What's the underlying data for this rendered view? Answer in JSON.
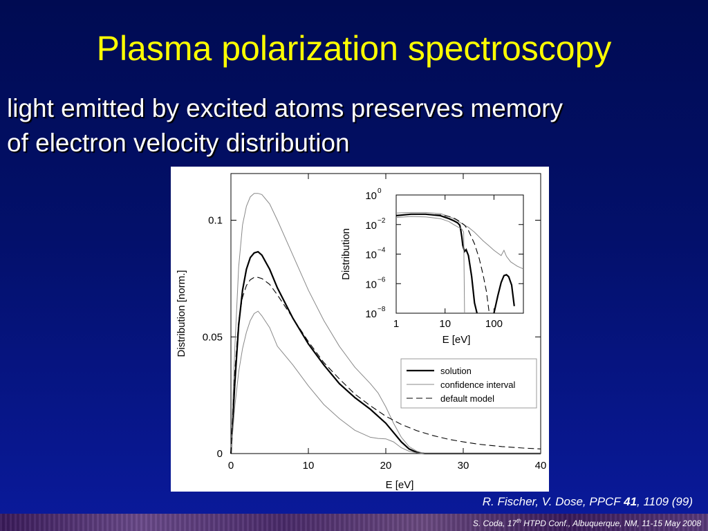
{
  "slide": {
    "title": "Plasma polarization spectroscopy",
    "subtitle_line1": "light emitted by excited atoms preserves memory",
    "subtitle_line2": "of electron velocity distribution",
    "citation_prefix": "R. Fischer, V. Dose, PPCF ",
    "citation_volume": "41",
    "citation_suffix": ", 1109 (99)",
    "footer_author": "S. Coda, 17",
    "footer_sup": "th",
    "footer_rest": " HTPD Conf., Albuquerque, NM, 11-15 May 2008"
  },
  "chart_data": [
    {
      "type": "line",
      "xlabel": "E [eV]",
      "ylabel": "Distribution [norm.]",
      "xlim": [
        0,
        40
      ],
      "ylim": [
        0,
        0.12
      ],
      "xticks": [
        0,
        10,
        20,
        30,
        40
      ],
      "xtick_labels": [
        "0",
        "10",
        "20",
        "30",
        "40"
      ],
      "yticks": [
        0,
        0.05,
        0.1
      ],
      "ytick_labels": [
        "0",
        "0.05",
        "0.1"
      ],
      "legend_position": "bottom-right",
      "legend": [
        "solution",
        "confidence interval",
        "default model"
      ],
      "series": [
        {
          "name": "solution",
          "style": "thick",
          "x": [
            0,
            0.5,
            1,
            1.5,
            2,
            2.5,
            3,
            3.5,
            4,
            5,
            6,
            8,
            10,
            12,
            14,
            16,
            18,
            20,
            21,
            22,
            23,
            24,
            25,
            27,
            30,
            35,
            40
          ],
          "y": [
            0,
            0.03,
            0.055,
            0.07,
            0.079,
            0.084,
            0.086,
            0.0865,
            0.085,
            0.079,
            0.071,
            0.058,
            0.047,
            0.038,
            0.03,
            0.024,
            0.019,
            0.013,
            0.009,
            0.005,
            0.002,
            0.0005,
            0,
            0,
            0,
            0,
            0
          ]
        },
        {
          "name": "confidence interval",
          "style": "thin",
          "x": [
            0,
            0.5,
            1,
            1.5,
            2,
            2.5,
            3,
            3.5,
            4,
            5,
            6,
            8,
            10,
            12,
            14,
            16,
            18,
            19,
            20,
            21,
            22,
            23,
            24,
            25,
            27,
            30,
            35,
            40
          ],
          "y": [
            0,
            0.045,
            0.08,
            0.098,
            0.106,
            0.11,
            0.1115,
            0.1115,
            0.111,
            0.107,
            0.1,
            0.085,
            0.07,
            0.057,
            0.046,
            0.037,
            0.03,
            0.026,
            0.02,
            0.013,
            0.007,
            0.003,
            0.001,
            0,
            0,
            0,
            0,
            0
          ]
        },
        {
          "name": "confidence interval lower",
          "style": "thin",
          "x": [
            0,
            0.5,
            1,
            1.5,
            2,
            2.5,
            3,
            3.5,
            4,
            5,
            6,
            8,
            10,
            12,
            14,
            16,
            18,
            19,
            20,
            21,
            22,
            23,
            24,
            25,
            27,
            30,
            35,
            40
          ],
          "y": [
            0,
            0.02,
            0.035,
            0.045,
            0.052,
            0.057,
            0.06,
            0.061,
            0.059,
            0.054,
            0.046,
            0.038,
            0.029,
            0.021,
            0.015,
            0.01,
            0.007,
            0.0065,
            0.0063,
            0.005,
            0.0025,
            0.001,
            0.0003,
            0,
            0,
            0,
            0,
            0
          ]
        },
        {
          "name": "default model",
          "style": "dashed",
          "x": [
            0,
            0.5,
            1,
            1.5,
            2,
            2.5,
            3,
            3.5,
            4,
            5,
            6,
            8,
            10,
            12,
            14,
            16,
            18,
            20,
            22,
            24,
            26,
            28,
            30,
            32,
            35,
            38,
            40
          ],
          "y": [
            0,
            0.035,
            0.057,
            0.067,
            0.072,
            0.0745,
            0.0755,
            0.0755,
            0.075,
            0.0725,
            0.068,
            0.058,
            0.048,
            0.039,
            0.032,
            0.0255,
            0.0205,
            0.016,
            0.0125,
            0.0098,
            0.0078,
            0.0062,
            0.005,
            0.004,
            0.003,
            0.0023,
            0.002
          ]
        }
      ]
    },
    {
      "type": "line",
      "xlabel": "E [eV]",
      "ylabel": "Distribution",
      "xscale": "log",
      "yscale": "log",
      "xlim": [
        1,
        400
      ],
      "ylim": [
        1e-08,
        1
      ],
      "xticks": [
        1,
        10,
        100
      ],
      "xtick_labels": [
        "1",
        "10",
        "100"
      ],
      "yticks": [
        1,
        0.01,
        0.0001,
        1e-06,
        1e-08
      ],
      "ytick_base": [
        "10",
        "10",
        "10",
        "10",
        "10"
      ],
      "ytick_exp": [
        "0",
        "−2",
        "−4",
        "−6",
        "−8"
      ],
      "series": [
        {
          "name": "solution",
          "style": "thick",
          "x": [
            1,
            2,
            4,
            8,
            12,
            15,
            18,
            20,
            21,
            22,
            23,
            25,
            27,
            30,
            35,
            40,
            45
          ],
          "y": [
            0.04,
            0.05,
            0.05,
            0.04,
            0.025,
            0.018,
            0.013,
            0.009,
            0.004,
            0.0015,
            0.0004,
            0.00015,
            0.0002,
            8e-05,
            3e-06,
            5e-08,
            1e-08
          ]
        },
        {
          "name": "solution second peak",
          "style": "thick",
          "x": [
            100,
            120,
            140,
            160,
            180,
            200,
            230,
            260
          ],
          "y": [
            1e-08,
            1.5e-07,
            1.2e-06,
            3.5e-06,
            4e-06,
            3e-06,
            8e-07,
            3e-08
          ]
        },
        {
          "name": "confidence interval",
          "style": "thin",
          "x": [
            1,
            2,
            4,
            8,
            12,
            15,
            18,
            20,
            25,
            30,
            40,
            60,
            80,
            100,
            140,
            160,
            180,
            220,
            300,
            400
          ],
          "y": [
            0.06,
            0.065,
            0.065,
            0.055,
            0.035,
            0.025,
            0.018,
            0.014,
            0.009,
            0.0065,
            0.003,
            0.0008,
            0.00035,
            0.00018,
            8e-05,
            0.00018,
            7e-05,
            3e-05,
            1.5e-05,
            1e-05
          ]
        },
        {
          "name": "confidence interval lower",
          "style": "thin",
          "x": [
            1,
            2,
            4,
            8,
            12,
            15,
            18,
            20,
            22,
            24,
            24.5,
            25
          ],
          "y": [
            0.03,
            0.035,
            0.033,
            0.025,
            0.016,
            0.01,
            0.007,
            0.006,
            0.005,
            0.003,
            1e-05,
            1e-08
          ]
        },
        {
          "name": "default model",
          "style": "dashed",
          "x": [
            1,
            2,
            4,
            8,
            12,
            16,
            20,
            25,
            30,
            40,
            50,
            60,
            70,
            80
          ],
          "y": [
            0.04,
            0.05,
            0.05,
            0.045,
            0.035,
            0.025,
            0.016,
            0.009,
            0.004,
            0.0005,
            5e-05,
            4e-06,
            3e-07,
            1e-08
          ]
        }
      ]
    }
  ]
}
